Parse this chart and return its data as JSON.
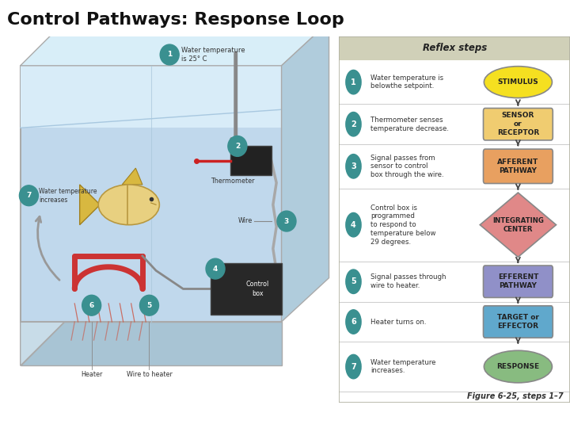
{
  "title": "Control Pathways: Response Loop",
  "title_bg": "#77bb66",
  "title_text_color": "#111111",
  "title_fontsize": 16,
  "fig_bg": "#ffffff",
  "right_panel_bg": "#f8f8f4",
  "reflex_header": "Reflex steps",
  "reflex_header_bg": "#d0d0b8",
  "steps": [
    {
      "num": "1",
      "text": "Water temperature is\nbelowthe setpoint.",
      "shape": "ellipse",
      "label": "STIMULUS",
      "color": "#f5e020",
      "text_color": "#111111"
    },
    {
      "num": "2",
      "text": "Thermometer senses\ntemperature decrease.",
      "shape": "rect",
      "label": "SENSOR\nor\nRECEPTOR",
      "color": "#f0cc70",
      "text_color": "#111111"
    },
    {
      "num": "3",
      "text": "Signal passes from\nsensor to control\nbox through the wire.",
      "shape": "rect",
      "label": "AFFERENT\nPATHWAY",
      "color": "#e8a060",
      "text_color": "#111111"
    },
    {
      "num": "4",
      "text": "Control box is\nprogrammed\nto respond to\ntemperature below\n29 degrees.",
      "shape": "diamond",
      "label": "INTEGRATING\nCENTER",
      "color": "#e08888",
      "text_color": "#111111"
    },
    {
      "num": "5",
      "text": "Signal passes through\nwire to heater.",
      "shape": "rect",
      "label": "EFFERENT\nPATHWAY",
      "color": "#9090c8",
      "text_color": "#111111"
    },
    {
      "num": "6",
      "text": "Heater turns on.",
      "shape": "rect",
      "label": "TARGET or\nEFFECTOR",
      "color": "#60a8cc",
      "text_color": "#111111"
    },
    {
      "num": "7",
      "text": "Water temperature\nincreases.",
      "shape": "ellipse",
      "label": "RESPONSE",
      "color": "#88bb80",
      "text_color": "#111111"
    }
  ],
  "circle_color": "#3a9090",
  "arrow_color": "#444444",
  "divider_color": "#cccccc",
  "figure_caption": "Figure 6-25, steps 1–7",
  "tank_outline": "#aaaaaa",
  "tank_front_bg": "#c4dff0",
  "tank_water_light": "#d8eef8",
  "tank_water_dark": "#b0cce0",
  "tank_side_bg": "#b8d0e0",
  "tank_top_bg": "#ddeef8",
  "tank_bottom_bg": "#a0c0d0",
  "row_tops": [
    0.935,
    0.815,
    0.705,
    0.585,
    0.385,
    0.275,
    0.165,
    0.03
  ]
}
